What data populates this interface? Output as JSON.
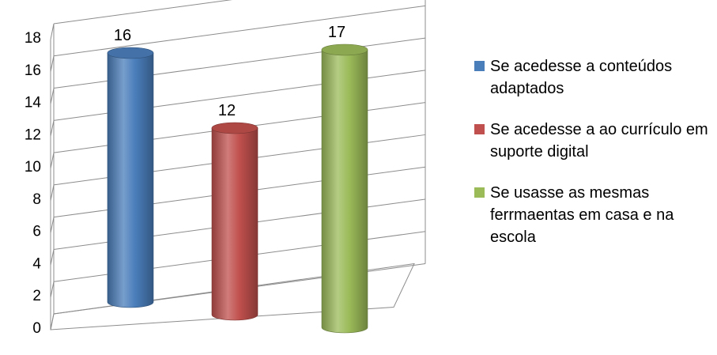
{
  "chart_data": {
    "type": "bar",
    "style": "3d-cylinder",
    "categories": [
      "Se acedesse a conteúdos adaptados",
      "Se acedesse a ao currículo em suporte digital",
      "Se usasse as mesmas ferrmaentas em casa e na escola"
    ],
    "values": [
      16,
      12,
      17
    ],
    "value_labels": [
      "16",
      "12",
      "17"
    ],
    "colors": [
      "#4a7ebb",
      "#c0504d",
      "#9bbb59"
    ],
    "ylim": [
      0,
      18
    ],
    "yticks": [
      "0",
      "2",
      "4",
      "6",
      "8",
      "10",
      "12",
      "14",
      "16",
      "18"
    ],
    "grid": true,
    "legend": {
      "placement": "right",
      "entries": [
        "Se acedesse a conteúdos adaptados",
        "Se acedesse a ao currículo em suporte digital",
        "Se usasse as mesmas ferrmaentas em casa e na escola"
      ]
    }
  }
}
